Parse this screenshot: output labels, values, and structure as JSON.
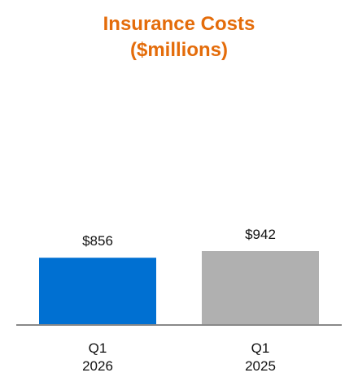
{
  "chart_data": {
    "type": "bar",
    "title": "Insurance Costs",
    "subtitle": "($millions)",
    "categories": [
      "Q1\n2026",
      "Q1\n2025"
    ],
    "values": [
      856,
      942
    ],
    "value_labels": [
      "$856",
      "$942"
    ],
    "colors": [
      "#0070d2",
      "#b0b0b0"
    ]
  }
}
